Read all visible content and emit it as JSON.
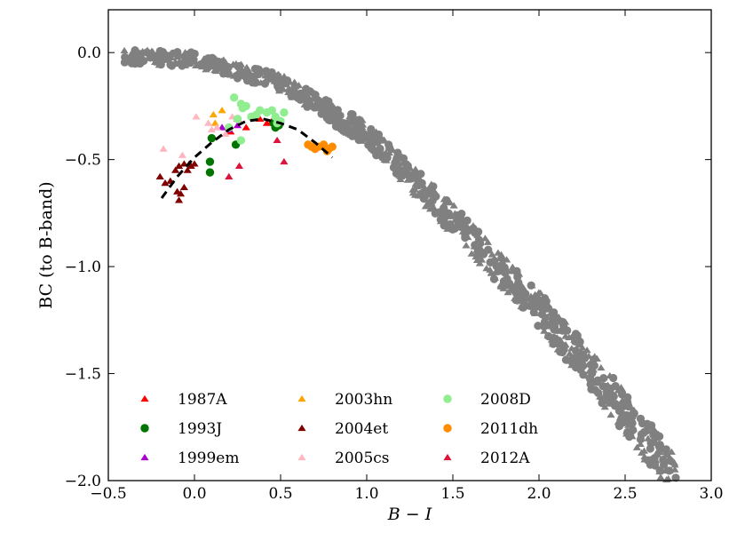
{
  "chart_data": {
    "type": "scatter",
    "title": "",
    "xlabel": "B − I",
    "ylabel": "BC (to B-band)",
    "xlim": [
      -0.5,
      3.0
    ],
    "ylim": [
      -2.0,
      0.2
    ],
    "xticks": [
      -0.5,
      0.0,
      0.5,
      1.0,
      1.5,
      2.0,
      2.5,
      3.0
    ],
    "xtick_labels": [
      "−0.5",
      "0.0",
      "0.5",
      "1.0",
      "1.5",
      "2.0",
      "2.5",
      "3.0"
    ],
    "yticks": [
      0.0,
      -0.5,
      -1.0,
      -1.5,
      -2.0
    ],
    "ytick_labels": [
      "0.0",
      "−0.5",
      "−1.0",
      "−1.5",
      "−2.0"
    ],
    "grid": false,
    "legend_position": "bottom-left",
    "background_sample": {
      "name": "comparison sample (grey)",
      "color": "#808080",
      "x_range": [
        -0.42,
        2.8
      ],
      "trend": [
        [
          -0.4,
          -0.02
        ],
        [
          0.0,
          -0.03
        ],
        [
          0.5,
          -0.14
        ],
        [
          1.0,
          -0.38
        ],
        [
          1.5,
          -0.78
        ],
        [
          2.0,
          -1.2
        ],
        [
          2.5,
          -1.68
        ],
        [
          2.8,
          -2.0
        ]
      ]
    },
    "fit_curve": {
      "name": "polynomial fit",
      "style": "dashed",
      "color": "#000000",
      "points": [
        [
          -0.19,
          -0.68
        ],
        [
          -0.1,
          -0.58
        ],
        [
          0.0,
          -0.49
        ],
        [
          0.1,
          -0.42
        ],
        [
          0.2,
          -0.36
        ],
        [
          0.3,
          -0.32
        ],
        [
          0.4,
          -0.31
        ],
        [
          0.5,
          -0.33
        ],
        [
          0.6,
          -0.36
        ],
        [
          0.7,
          -0.42
        ],
        [
          0.8,
          -0.49
        ]
      ]
    },
    "series": [
      {
        "name": "1987A",
        "marker": "triangle",
        "color": "#ff0000",
        "points": [
          [
            0.21,
            -0.37
          ],
          [
            0.25,
            -0.31
          ],
          [
            0.3,
            -0.35
          ],
          [
            0.38,
            -0.31
          ],
          [
            0.42,
            -0.33
          ],
          [
            0.45,
            -0.32
          ]
        ]
      },
      {
        "name": "1993J",
        "marker": "circle",
        "color": "#007500",
        "points": [
          [
            0.1,
            -0.4
          ],
          [
            0.09,
            -0.51
          ],
          [
            0.09,
            -0.56
          ],
          [
            0.24,
            -0.43
          ],
          [
            0.47,
            -0.35
          ],
          [
            0.49,
            -0.34
          ],
          [
            0.46,
            -0.33
          ]
        ]
      },
      {
        "name": "1999em",
        "marker": "triangle",
        "color": "#aa00cc",
        "points": [
          [
            0.16,
            -0.35
          ],
          [
            0.2,
            -0.36
          ],
          [
            0.25,
            -0.34
          ]
        ]
      },
      {
        "name": "2003hn",
        "marker": "triangle",
        "color": "#ffa500",
        "points": [
          [
            0.11,
            -0.29
          ],
          [
            0.16,
            -0.27
          ],
          [
            0.12,
            -0.33
          ]
        ]
      },
      {
        "name": "2004et",
        "marker": "triangle",
        "color": "#800000",
        "points": [
          [
            -0.2,
            -0.58
          ],
          [
            -0.17,
            -0.61
          ],
          [
            -0.14,
            -0.6
          ],
          [
            -0.11,
            -0.55
          ],
          [
            -0.09,
            -0.53
          ],
          [
            -0.06,
            -0.52
          ],
          [
            -0.04,
            -0.55
          ],
          [
            -0.02,
            -0.53
          ],
          [
            -0.1,
            -0.65
          ],
          [
            -0.09,
            -0.69
          ],
          [
            -0.08,
            -0.66
          ],
          [
            -0.06,
            -0.63
          ],
          [
            -0.03,
            -0.52
          ],
          [
            0.0,
            -0.52
          ]
        ]
      },
      {
        "name": "2005cs",
        "marker": "triangle",
        "color": "#ffb6c1",
        "points": [
          [
            -0.18,
            -0.45
          ],
          [
            -0.07,
            -0.48
          ],
          [
            0.01,
            -0.3
          ],
          [
            0.08,
            -0.33
          ],
          [
            0.1,
            -0.36
          ],
          [
            0.13,
            -0.35
          ],
          [
            0.18,
            -0.38
          ],
          [
            0.22,
            -0.3
          ]
        ]
      },
      {
        "name": "2008D",
        "marker": "circle",
        "color": "#90ee90",
        "points": [
          [
            0.23,
            -0.21
          ],
          [
            0.27,
            -0.24
          ],
          [
            0.28,
            -0.26
          ],
          [
            0.3,
            -0.25
          ],
          [
            0.33,
            -0.3
          ],
          [
            0.38,
            -0.27
          ],
          [
            0.42,
            -0.28
          ],
          [
            0.45,
            -0.27
          ],
          [
            0.47,
            -0.3
          ],
          [
            0.52,
            -0.28
          ],
          [
            0.48,
            -0.33
          ],
          [
            0.5,
            -0.32
          ],
          [
            0.27,
            -0.41
          ],
          [
            0.2,
            -0.35
          ],
          [
            0.25,
            -0.31
          ],
          [
            0.36,
            -0.29
          ]
        ]
      },
      {
        "name": "2011dh",
        "marker": "circle",
        "color": "#ff8c00",
        "points": [
          [
            0.66,
            -0.43
          ],
          [
            0.68,
            -0.44
          ],
          [
            0.7,
            -0.45
          ],
          [
            0.72,
            -0.44
          ],
          [
            0.75,
            -0.43
          ],
          [
            0.78,
            -0.45
          ],
          [
            0.8,
            -0.44
          ],
          [
            0.77,
            -0.46
          ]
        ]
      },
      {
        "name": "2012A",
        "marker": "triangle",
        "color": "#dc143c",
        "points": [
          [
            0.2,
            -0.58
          ],
          [
            0.26,
            -0.53
          ],
          [
            0.48,
            -0.41
          ],
          [
            0.52,
            -0.51
          ]
        ]
      }
    ]
  }
}
